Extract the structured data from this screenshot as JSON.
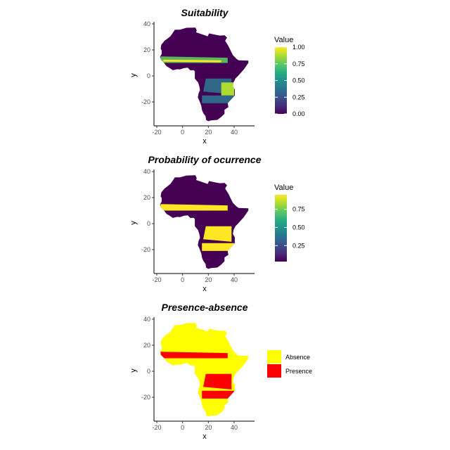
{
  "chart_data": [
    {
      "type": "heatmap",
      "title": "Suitability",
      "xlabel": "x",
      "ylabel": "y",
      "xlim": [
        -22,
        55
      ],
      "ylim": [
        -38,
        40
      ],
      "xticks": [
        -20,
        0,
        20,
        40
      ],
      "yticks": [
        40,
        20,
        0,
        -20
      ],
      "legend": {
        "title": "Value",
        "type": "colorbar",
        "min": 0,
        "max": 1,
        "ticks": [
          "1.00",
          "0.75",
          "0.50",
          "0.25",
          "0.00"
        ],
        "position": "right"
      },
      "colormap": "viridis"
    },
    {
      "type": "heatmap",
      "title": "Probability of ocurrence",
      "xlabel": "x",
      "ylabel": "y",
      "xlim": [
        -22,
        55
      ],
      "ylim": [
        -38,
        40
      ],
      "xticks": [
        -20,
        0,
        20,
        40
      ],
      "yticks": [
        40,
        20,
        0,
        -20
      ],
      "legend": {
        "title": "Value",
        "type": "colorbar",
        "min": 0,
        "max": 1,
        "ticks": [
          "0.75",
          "0.50",
          "0.25"
        ],
        "ticks_top": "0.75",
        "position": "right"
      },
      "legend_tick_top": "0.75",
      "legend_ticks": [
        "0.75",
        "0.50",
        "0.25"
      ],
      "legend_top_tick": "0.75",
      "colormap": "viridis"
    },
    {
      "type": "heatmap",
      "title": "Presence-absence",
      "xlabel": "x",
      "ylabel": "y",
      "xlim": [
        -22,
        55
      ],
      "ylim": [
        -38,
        40
      ],
      "xticks": [
        -20,
        0,
        20,
        40
      ],
      "yticks": [
        40,
        20,
        0,
        -20
      ],
      "legend": {
        "type": "categorical",
        "position": "right",
        "entries": [
          {
            "label": "Absence",
            "color": "#ffff00"
          },
          {
            "label": "Presence",
            "color": "#ff0000"
          }
        ]
      }
    }
  ],
  "panel2_ticks": [
    "0.75",
    "0.50",
    "0.25"
  ],
  "colors": {
    "viridis_low": "#440154",
    "viridis_high": "#fde725",
    "absence": "#ffff00",
    "presence": "#ff0000"
  }
}
